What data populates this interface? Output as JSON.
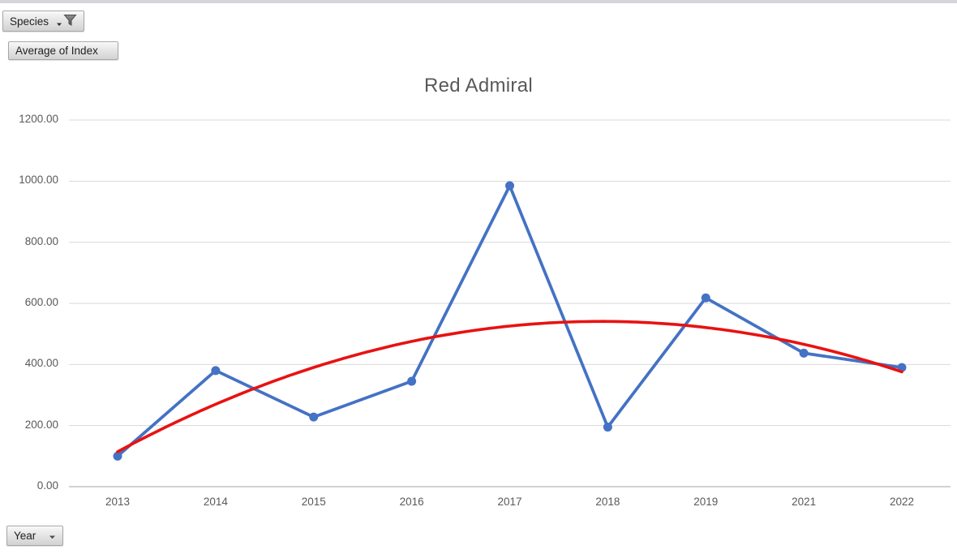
{
  "window": {
    "top_strip_color": "#d4d6da",
    "background": "#ffffff"
  },
  "pivot_buttons": {
    "species": {
      "label": "Species",
      "filter_applied": true
    },
    "value_field": {
      "label": "Average of Index"
    },
    "axis_field": {
      "label": "Year"
    }
  },
  "chart_data": {
    "type": "line",
    "title": "Red Admiral",
    "categories": [
      "2013",
      "2014",
      "2015",
      "2016",
      "2017",
      "2018",
      "2019",
      "2021",
      "2022"
    ],
    "series": [
      {
        "name": "Average of Index",
        "color": "#4472C4",
        "marker": "circle",
        "values": [
          100,
          380,
          228,
          345,
          985,
          195,
          618,
          437,
          390
        ]
      }
    ],
    "trendline": {
      "type": "polynomial",
      "order": 2,
      "color": "#E81212",
      "coefficients": {
        "c0": -76.3,
        "c1": 208.1,
        "c2": -17.54
      },
      "x_domain": [
        1,
        9
      ]
    },
    "xlabel": "Year",
    "ylabel": "Average of Index",
    "ylim": [
      0,
      1200
    ],
    "y_ticks": [
      0,
      200,
      400,
      600,
      800,
      1000,
      1200
    ],
    "y_tick_decimals": 2,
    "grid": true,
    "legend": "none",
    "grid_color": "#d9d9d9",
    "axis_line_color": "#c3c3c3",
    "tick_label_color": "#595959",
    "title_color": "#595959"
  }
}
